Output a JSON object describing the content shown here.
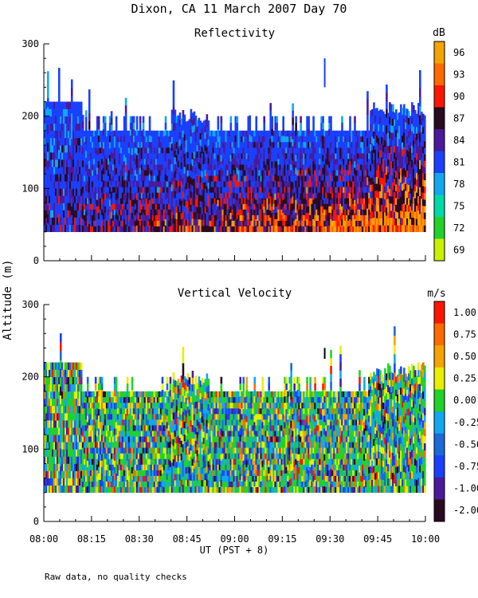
{
  "title": "Dixon, CA 11 March 2007  Day  70",
  "ylabel": "Altitude (m)",
  "xlabel": "UT  (PST + 8)",
  "footnote": "Raw data, no quality checks",
  "chart_data": [
    {
      "type": "heatmap",
      "title": "Reflectivity",
      "units": "dB",
      "xlabel": "UT  (PST + 8)",
      "ylabel": "Altitude (m)",
      "x_ticks": [
        "08:00",
        "08:15",
        "08:30",
        "08:45",
        "09:00",
        "09:15",
        "09:30",
        "09:45",
        "10:00"
      ],
      "y_ticks": [
        0,
        100,
        200,
        300
      ],
      "ylim": [
        0,
        300
      ],
      "xlim": [
        "08:00",
        "10:00"
      ],
      "data_altitude_range": [
        40,
        220
      ],
      "colorbar": {
        "labels": [
          "96",
          "93",
          "90",
          "87",
          "84",
          "81",
          "78",
          "75",
          "72",
          "69"
        ],
        "colors": [
          "#f5a300",
          "#ff6a00",
          "#ff1500",
          "#2a0a1e",
          "#4b1a9a",
          "#1a40ff",
          "#10a8f0",
          "#00d8a8",
          "#22d22a",
          "#c8f000"
        ]
      }
    },
    {
      "type": "heatmap",
      "title": "Vertical Velocity",
      "units": "m/s",
      "xlabel": "UT  (PST + 8)",
      "ylabel": "Altitude (m)",
      "x_ticks": [
        "08:00",
        "08:15",
        "08:30",
        "08:45",
        "09:00",
        "09:15",
        "09:30",
        "09:45",
        "10:00"
      ],
      "y_ticks": [
        0,
        100,
        200,
        300
      ],
      "ylim": [
        0,
        300
      ],
      "xlim": [
        "08:00",
        "10:00"
      ],
      "data_altitude_range": [
        40,
        220
      ],
      "colorbar": {
        "labels": [
          "1.00",
          "0.75",
          "0.50",
          "0.25",
          "0.00",
          "-0.25",
          "-0.50",
          "-0.75",
          "-1.00",
          "-2.00"
        ],
        "colors": [
          "#ff1500",
          "#ff6a00",
          "#f5a300",
          "#e8ef00",
          "#22d22a",
          "#10a8f0",
          "#1a6ad8",
          "#1a40ff",
          "#4b1a9a",
          "#2a0a1e"
        ]
      }
    }
  ]
}
